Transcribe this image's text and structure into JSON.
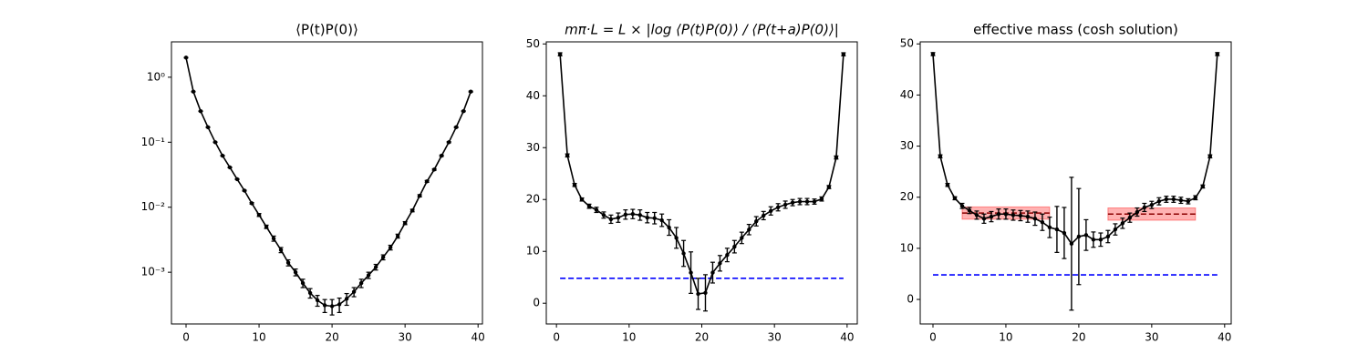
{
  "chart_data": [
    {
      "type": "line",
      "title": "⟨P(t)P(0)⟩",
      "log_y": true,
      "color": "#000000",
      "x": [
        0,
        1,
        2,
        3,
        4,
        5,
        6,
        7,
        8,
        9,
        10,
        11,
        12,
        13,
        14,
        15,
        16,
        17,
        18,
        19,
        20,
        21,
        22,
        23,
        24,
        25,
        26,
        27,
        28,
        29,
        30,
        31,
        32,
        33,
        34,
        35,
        36,
        37,
        38,
        39
      ],
      "values": [
        2.0,
        0.6,
        0.3,
        0.17,
        0.1,
        0.062,
        0.041,
        0.027,
        0.018,
        0.0115,
        0.0076,
        0.005,
        0.0033,
        0.0022,
        0.0014,
        0.001,
        0.00068,
        0.00048,
        0.00037,
        0.00031,
        0.0003,
        0.00032,
        0.00039,
        0.0005,
        0.00068,
        0.0009,
        0.0012,
        0.0017,
        0.0024,
        0.0036,
        0.0057,
        0.0089,
        0.015,
        0.025,
        0.038,
        0.062,
        0.1,
        0.17,
        0.3,
        0.6
      ],
      "errors": [
        0.02,
        0.006,
        0.003,
        0.002,
        0.001,
        0.0008,
        0.0005,
        0.0004,
        0.0003,
        0.0003,
        0.0004,
        0.0003,
        0.0003,
        0.0002,
        0.00015,
        0.00012,
        0.0001,
        8e-05,
        7e-05,
        7e-05,
        8e-05,
        8e-05,
        8e-05,
        8e-05,
        0.0001,
        0.0001,
        0.00012,
        0.00015,
        0.0002,
        0.00025,
        0.0003,
        0.0004,
        0.0006,
        0.0008,
        0.001,
        0.0015,
        0.002,
        0.003,
        0.005,
        0.01
      ],
      "xlim": [
        -2,
        40.6
      ],
      "xticks": [
        0,
        10,
        20,
        30,
        40
      ],
      "ylim": [
        0.00016,
        3.5
      ],
      "yticks": [
        {
          "value": 1,
          "label": "10⁰"
        },
        {
          "value": 0.1,
          "label": "10⁻¹"
        },
        {
          "value": 0.01,
          "label": "10⁻²"
        },
        {
          "value": 0.001,
          "label": "10⁻³"
        }
      ]
    },
    {
      "type": "line",
      "title": "mπ·L = L × |log ⟨P(t)P(0)⟩ / ⟨P(t+a)P(0)⟩|",
      "log_y": false,
      "color": "#000000",
      "x": [
        0.5,
        1.5,
        2.5,
        3.5,
        4.5,
        5.5,
        6.5,
        7.5,
        8.5,
        9.5,
        10.5,
        11.5,
        12.5,
        13.5,
        14.5,
        15.5,
        16.5,
        17.5,
        18.5,
        19.5,
        20.5,
        21.5,
        22.5,
        23.5,
        24.5,
        25.5,
        26.5,
        27.5,
        28.5,
        29.5,
        30.5,
        31.5,
        32.5,
        33.5,
        34.5,
        35.5,
        36.5,
        37.5,
        38.5,
        39.5
      ],
      "values": [
        48,
        28.5,
        22.8,
        20,
        18.7,
        18,
        17,
        16.2,
        16.5,
        17.1,
        17.2,
        17,
        16.5,
        16.4,
        16,
        14.6,
        12.6,
        9.6,
        5.9,
        1.8,
        2,
        5.9,
        7.7,
        9.3,
        10.9,
        12.6,
        14.2,
        15.8,
        16.9,
        17.8,
        18.5,
        19,
        19.4,
        19.6,
        19.6,
        19.6,
        20.1,
        22.4,
        28.1,
        48
      ],
      "errors": [
        0.3,
        0.3,
        0.3,
        0.3,
        0.4,
        0.5,
        0.6,
        0.8,
        0.9,
        0.9,
        0.9,
        1,
        1,
        1.1,
        1.2,
        1.5,
        2,
        2.5,
        4,
        3,
        3.5,
        2,
        1.5,
        1.3,
        1.2,
        1.1,
        1,
        0.9,
        0.8,
        0.8,
        0.7,
        0.7,
        0.6,
        0.6,
        0.6,
        0.5,
        0.4,
        0.3,
        0.3,
        0.3
      ],
      "reference_line": {
        "value": 4.8,
        "color": "#0000ff"
      },
      "xlim": [
        -1.4,
        41.4
      ],
      "xticks": [
        0,
        10,
        20,
        30,
        40
      ],
      "ylim": [
        -4.0,
        50.4
      ],
      "yticks": [
        0,
        10,
        20,
        30,
        40,
        50
      ]
    },
    {
      "type": "line",
      "title": "effective mass (cosh solution)",
      "log_y": false,
      "color": "#000000",
      "x": [
        0,
        1,
        2,
        3,
        4,
        5,
        6,
        7,
        8,
        9,
        10,
        11,
        12,
        13,
        14,
        15,
        16,
        17,
        18,
        19,
        20,
        21,
        22,
        23,
        24,
        25,
        26,
        27,
        28,
        29,
        30,
        31,
        32,
        33,
        34,
        35,
        36,
        37,
        38,
        39
      ],
      "values": [
        48,
        28,
        22.4,
        19.8,
        18.3,
        17.4,
        16.5,
        15.8,
        16.2,
        16.7,
        16.7,
        16.5,
        16.4,
        16.2,
        15.8,
        15.1,
        14.1,
        13.7,
        13,
        10.9,
        12.3,
        12.6,
        11.7,
        11.7,
        12.3,
        13.7,
        14.9,
        16,
        17.1,
        18,
        18.5,
        19.2,
        19.6,
        19.6,
        19.4,
        19.2,
        19.9,
        22.1,
        28,
        48
      ],
      "errors": [
        0.3,
        0.3,
        0.3,
        0.3,
        0.5,
        0.6,
        0.8,
        0.9,
        1,
        1,
        1,
        1,
        1,
        1.1,
        1.3,
        1.6,
        2,
        4.5,
        5,
        13,
        9.4,
        3,
        1.5,
        1.3,
        1.2,
        1.1,
        1,
        0.9,
        0.8,
        0.8,
        0.7,
        0.7,
        0.6,
        0.6,
        0.6,
        0.5,
        0.4,
        0.3,
        0.3,
        0.3
      ],
      "reference_line": {
        "value": 4.8,
        "color": "#0000ff"
      },
      "fits": [
        {
          "xrange": [
            4,
            16
          ],
          "value": 16.9,
          "error": 1.2,
          "color": "#ff0000",
          "line_color": "#8b0000"
        },
        {
          "xrange": [
            24,
            36
          ],
          "value": 16.7,
          "error": 1.2,
          "color": "#ff0000",
          "line_color": "#8b0000"
        }
      ],
      "xlim": [
        -1.75,
        40.9
      ],
      "xticks": [
        0,
        10,
        20,
        30,
        40
      ],
      "ylim": [
        -4.8,
        50.4
      ],
      "yticks": [
        0,
        10,
        20,
        30,
        40,
        50
      ]
    }
  ]
}
